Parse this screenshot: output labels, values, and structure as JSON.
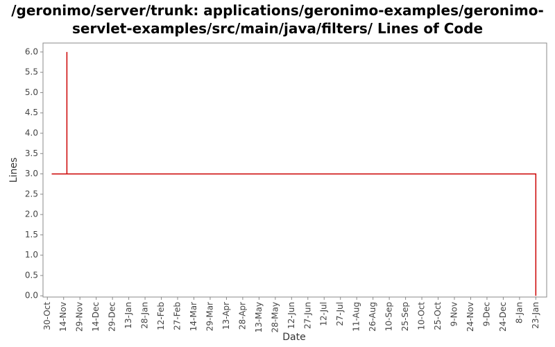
{
  "chart_data": {
    "type": "line",
    "title": "/geronimo/server/trunk: applications/geronimo-examples/geronimo-servlet-examples/src/main/java/filters/ Lines of Code",
    "xlabel": "Date",
    "ylabel": "Lines",
    "color": "#cc0000",
    "grid": false,
    "x": [
      4,
      18,
      18,
      18,
      450,
      450
    ],
    "values": [
      3,
      3,
      6,
      3,
      3,
      0
    ],
    "xlim": [
      -4,
      460
    ],
    "xticks": [
      {
        "value": 0,
        "label": "30-Oct"
      },
      {
        "value": 15,
        "label": "14-Nov"
      },
      {
        "value": 30,
        "label": "29-Nov"
      },
      {
        "value": 45,
        "label": "14-Dec"
      },
      {
        "value": 60,
        "label": "29-Dec"
      },
      {
        "value": 75,
        "label": "13-Jan"
      },
      {
        "value": 90,
        "label": "28-Jan"
      },
      {
        "value": 105,
        "label": "12-Feb"
      },
      {
        "value": 120,
        "label": "27-Feb"
      },
      {
        "value": 135,
        "label": "14-Mar"
      },
      {
        "value": 150,
        "label": "29-Mar"
      },
      {
        "value": 165,
        "label": "13-Apr"
      },
      {
        "value": 180,
        "label": "28-Apr"
      },
      {
        "value": 195,
        "label": "13-May"
      },
      {
        "value": 210,
        "label": "28-May"
      },
      {
        "value": 225,
        "label": "12-Jun"
      },
      {
        "value": 240,
        "label": "27-Jun"
      },
      {
        "value": 255,
        "label": "12-Jul"
      },
      {
        "value": 270,
        "label": "27-Jul"
      },
      {
        "value": 285,
        "label": "11-Aug"
      },
      {
        "value": 300,
        "label": "26-Aug"
      },
      {
        "value": 315,
        "label": "10-Sep"
      },
      {
        "value": 330,
        "label": "25-Sep"
      },
      {
        "value": 345,
        "label": "10-Oct"
      },
      {
        "value": 360,
        "label": "25-Oct"
      },
      {
        "value": 375,
        "label": "9-Nov"
      },
      {
        "value": 390,
        "label": "24-Nov"
      },
      {
        "value": 405,
        "label": "9-Dec"
      },
      {
        "value": 420,
        "label": "24-Dec"
      },
      {
        "value": 435,
        "label": "8-Jan"
      },
      {
        "value": 450,
        "label": "23-Jan"
      }
    ],
    "ylim": [
      -0.03,
      6.22
    ],
    "yticks": [
      {
        "value": 0,
        "label": "0.0"
      },
      {
        "value": 0.5,
        "label": "0.5"
      },
      {
        "value": 1,
        "label": "1.0"
      },
      {
        "value": 1.5,
        "label": "1.5"
      },
      {
        "value": 2,
        "label": "2.0"
      },
      {
        "value": 2.5,
        "label": "2.5"
      },
      {
        "value": 3,
        "label": "3.0"
      },
      {
        "value": 3.5,
        "label": "3.5"
      },
      {
        "value": 4,
        "label": "4.0"
      },
      {
        "value": 4.5,
        "label": "4.5"
      },
      {
        "value": 5,
        "label": "5.0"
      },
      {
        "value": 5.5,
        "label": "5.5"
      },
      {
        "value": 6,
        "label": "6.0"
      }
    ]
  }
}
